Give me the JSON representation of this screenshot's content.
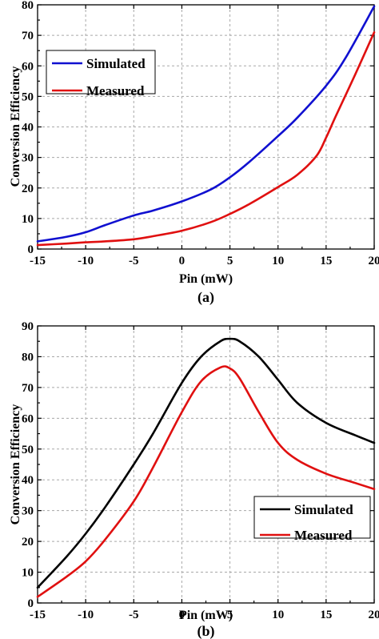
{
  "chart_data": [
    {
      "panel_label": "(a)",
      "type": "line",
      "xlabel": "Pin (mW)",
      "ylabel": "Conversion Efficiency",
      "xlim": [
        -15,
        20
      ],
      "ylim": [
        0,
        80
      ],
      "x_ticks": [
        -15,
        -10,
        -5,
        0,
        5,
        10,
        15,
        20
      ],
      "y_ticks": [
        0,
        10,
        20,
        30,
        40,
        50,
        60,
        70,
        80
      ],
      "grid": true,
      "legend_position": "upper-left",
      "series": [
        {
          "name": "Simulated",
          "color": "#1010d0",
          "x": [
            -15,
            -12,
            -10,
            -8,
            -5,
            -3,
            0,
            3,
            5,
            7,
            10,
            12,
            15,
            17,
            20
          ],
          "y": [
            2.5,
            4.0,
            5.5,
            7.8,
            11.0,
            12.6,
            15.6,
            19.5,
            23.5,
            28.5,
            37.0,
            43.0,
            53.5,
            62.5,
            79.5
          ]
        },
        {
          "name": "Measured",
          "color": "#e01010",
          "x": [
            -15,
            -12,
            -10,
            -8,
            -5,
            -3,
            0,
            3,
            5,
            7,
            10,
            12,
            14,
            15,
            16,
            18,
            20
          ],
          "y": [
            1.3,
            1.8,
            2.2,
            2.5,
            3.2,
            4.2,
            6.0,
            8.8,
            11.5,
            14.7,
            20.3,
            24.3,
            30.5,
            36.5,
            43.5,
            57.0,
            71.0
          ]
        }
      ]
    },
    {
      "panel_label": "(b)",
      "type": "line",
      "xlabel": "Pin (mW)",
      "ylabel": "Conversion Efficiency",
      "xlim": [
        -15,
        20
      ],
      "ylim": [
        0,
        90
      ],
      "x_ticks": [
        -15,
        -10,
        -5,
        0,
        5,
        10,
        15,
        20
      ],
      "y_ticks": [
        0,
        10,
        20,
        30,
        40,
        50,
        60,
        70,
        80,
        90
      ],
      "grid": true,
      "legend_position": "lower-right",
      "series": [
        {
          "name": "Simulated",
          "color": "#000000",
          "x": [
            -15,
            -12,
            -10,
            -8,
            -5,
            -3,
            0,
            2,
            4,
            5,
            6,
            8,
            10,
            12,
            15,
            18,
            20
          ],
          "y": [
            5.0,
            15.0,
            22.5,
            31.0,
            45.0,
            55.0,
            71.5,
            80.0,
            85.0,
            85.8,
            85.0,
            80.0,
            72.5,
            65.0,
            58.5,
            54.5,
            52.0
          ],
          "smooth": true
        },
        {
          "name": "Measured",
          "color": "#e01010",
          "x": [
            -15,
            -12,
            -10,
            -8,
            -5,
            -3,
            0,
            2,
            4,
            5,
            6,
            8,
            10,
            12,
            15,
            18,
            20
          ],
          "y": [
            2.0,
            8.5,
            13.5,
            20.5,
            33.0,
            44.0,
            62.0,
            72.0,
            76.5,
            76.2,
            73.0,
            62.0,
            52.0,
            46.5,
            42.0,
            39.0,
            37.0
          ],
          "smooth": true
        }
      ]
    }
  ]
}
